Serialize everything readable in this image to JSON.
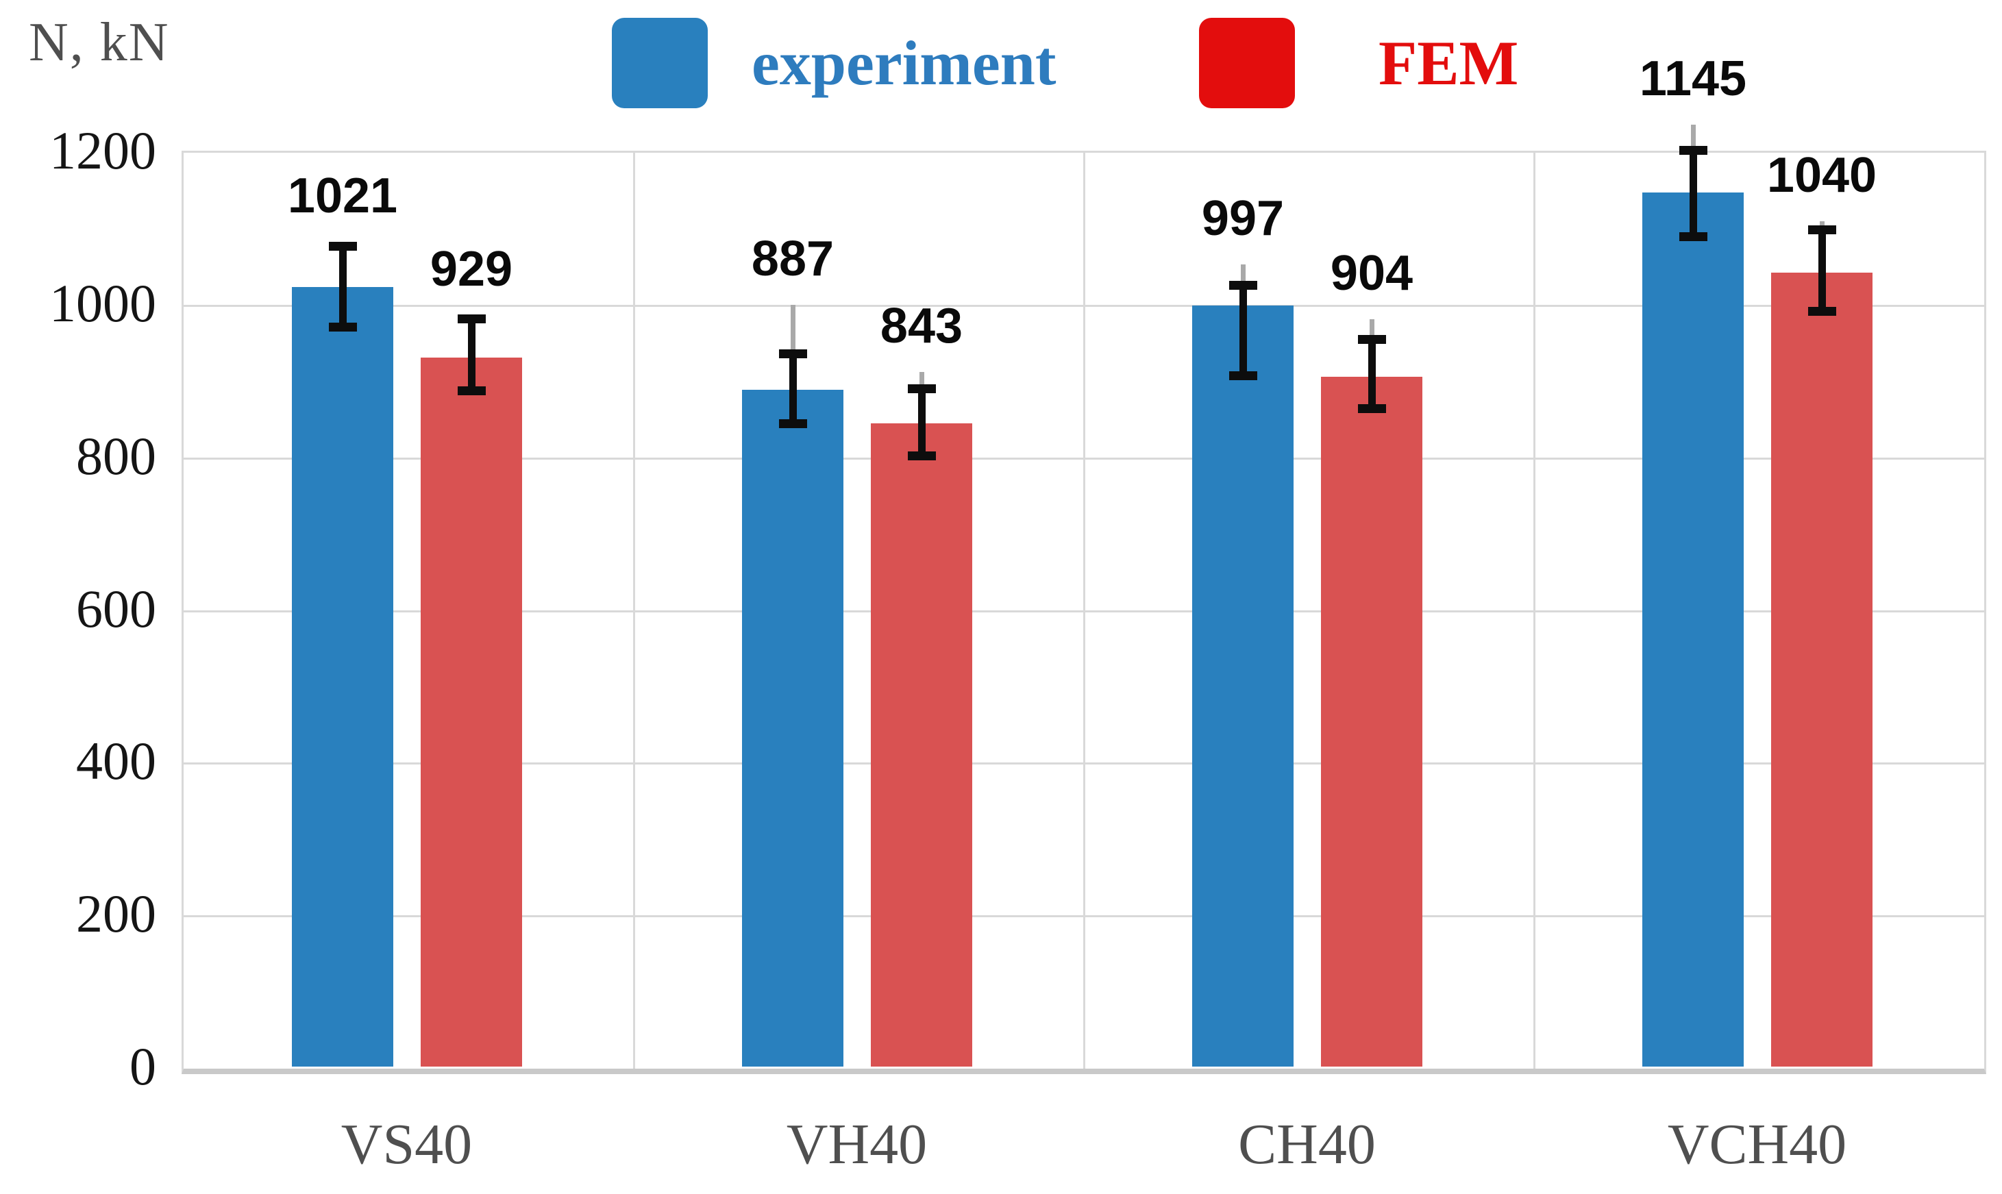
{
  "axis_unit_label": "N, kN",
  "chart_data": {
    "type": "bar",
    "title": "",
    "ylabel": "N, kN",
    "xlabel": "",
    "categories": [
      "VS40",
      "VH40",
      "CH40",
      "VCH40"
    ],
    "series": [
      {
        "name": "experiment",
        "color": "#2980be",
        "legend_color": "#2980be",
        "text_color": "#2e7cbe",
        "values": [
          1021,
          887,
          997,
          1145
        ],
        "error_low": [
          968,
          842,
          905,
          1087
        ],
        "error_high": [
          1075,
          934,
          1024,
          1201
        ],
        "whisker_top": [
          1081,
          998,
          1051,
          1234
        ]
      },
      {
        "name": "FEM",
        "color": "#d95252",
        "legend_color": "#e30d0d",
        "text_color": "#e30d0d",
        "values": [
          929,
          843,
          904,
          1040
        ],
        "error_low": [
          885,
          800,
          862,
          989
        ],
        "error_high": [
          980,
          889,
          953,
          1097
        ],
        "whisker_top": [
          985,
          910,
          979,
          1108
        ]
      }
    ],
    "ylim": [
      0,
      1200
    ],
    "ytick_step": 200,
    "yticks": [
      "0",
      "200",
      "400",
      "600",
      "800",
      "1000",
      "1200"
    ],
    "grid": true,
    "legend_position": "top",
    "error_bar_color": "#0d0d0d",
    "whisker_color": "#a9a9a9",
    "gridline_color": "#d9d9d9",
    "baseline_color": "#c9c9c9"
  }
}
